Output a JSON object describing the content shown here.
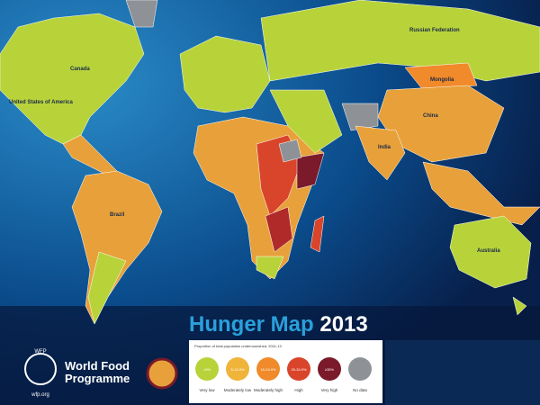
{
  "map": {
    "labels": {
      "russia": "Russian Federation",
      "canada": "Canada",
      "usa": "United States of America",
      "mongolia": "Mongolia",
      "china": "China",
      "india": "India",
      "brazil": "Brazil",
      "australia": "Australia"
    }
  },
  "title": {
    "main": "Hunger Map",
    "year": "2013"
  },
  "logo": {
    "acronym": "WFP",
    "name": "World Food Programme",
    "url": "wfp.org"
  },
  "legend": {
    "title": "Proportion of total population undernourished, 2011-13",
    "items": [
      {
        "label": "Very low",
        "range": "<5%"
      },
      {
        "label": "Moderately low",
        "range": "5-14.9%"
      },
      {
        "label": "Moderately high",
        "range": "15-24.9%"
      },
      {
        "label": "High",
        "range": "25-34.9%"
      },
      {
        "label": "Very high",
        "range": "≥35%"
      },
      {
        "label": "No data",
        "range": ""
      }
    ]
  }
}
